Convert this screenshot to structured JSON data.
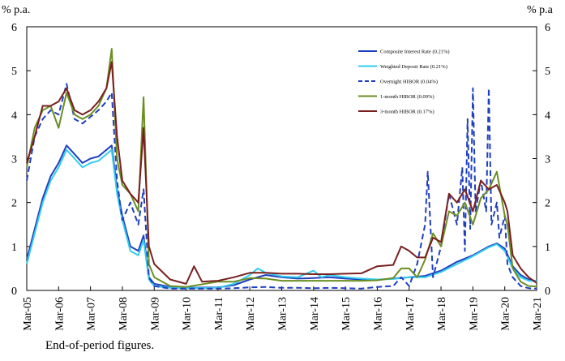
{
  "chart_data": {
    "type": "line",
    "y_unit_left": "% p.a.",
    "y_unit_right": "% p.a",
    "ylim": [
      0,
      6
    ],
    "yticks": [
      0,
      1,
      2,
      3,
      4,
      5,
      6
    ],
    "x_start": "2005-03",
    "x_end": "2021-03",
    "x_tick_labels": [
      "Mar-05",
      "Mar-06",
      "Mar-07",
      "Mar-08",
      "Mar-09",
      "Mar-10",
      "Mar-11",
      "Mar-12",
      "Mar-13",
      "Mar-14",
      "Mar-15",
      "Mar-16",
      "Mar-17",
      "Mar-18",
      "Mar-19",
      "Mar-20",
      "Mar-21"
    ],
    "grid": false,
    "legend_position": "top-right",
    "footnote": "End-of-period figures.",
    "series": [
      {
        "name": "Composite Interest Rate (0.21%)",
        "color": "#1f3fbf",
        "dash": "solid",
        "points": [
          [
            "2005-03",
            0.7
          ],
          [
            "2005-06",
            1.4
          ],
          [
            "2005-09",
            2.1
          ],
          [
            "2005-12",
            2.6
          ],
          [
            "2006-03",
            2.9
          ],
          [
            "2006-06",
            3.3
          ],
          [
            "2006-09",
            3.1
          ],
          [
            "2006-12",
            2.9
          ],
          [
            "2007-03",
            3.0
          ],
          [
            "2007-06",
            3.05
          ],
          [
            "2007-09",
            3.2
          ],
          [
            "2007-11",
            3.3
          ],
          [
            "2008-01",
            2.3
          ],
          [
            "2008-03",
            1.7
          ],
          [
            "2008-06",
            1.0
          ],
          [
            "2008-09",
            0.9
          ],
          [
            "2008-11",
            1.25
          ],
          [
            "2009-01",
            0.3
          ],
          [
            "2009-03",
            0.15
          ],
          [
            "2009-09",
            0.08
          ],
          [
            "2010-03",
            0.06
          ],
          [
            "2011-03",
            0.07
          ],
          [
            "2011-09",
            0.12
          ],
          [
            "2012-03",
            0.25
          ],
          [
            "2012-09",
            0.35
          ],
          [
            "2013-03",
            0.3
          ],
          [
            "2013-09",
            0.27
          ],
          [
            "2014-03",
            0.28
          ],
          [
            "2014-09",
            0.3
          ],
          [
            "2015-03",
            0.27
          ],
          [
            "2015-09",
            0.25
          ],
          [
            "2016-03",
            0.24
          ],
          [
            "2016-09",
            0.27
          ],
          [
            "2017-03",
            0.3
          ],
          [
            "2017-09",
            0.33
          ],
          [
            "2018-03",
            0.45
          ],
          [
            "2018-09",
            0.65
          ],
          [
            "2019-03",
            0.8
          ],
          [
            "2019-09",
            1.0
          ],
          [
            "2019-12",
            1.07
          ],
          [
            "2020-03",
            0.95
          ],
          [
            "2020-06",
            0.55
          ],
          [
            "2020-09",
            0.35
          ],
          [
            "2020-12",
            0.25
          ],
          [
            "2021-03",
            0.21
          ]
        ]
      },
      {
        "name": "Weighted Deposit Rate (0.21%)",
        "color": "#33ccee",
        "dash": "solid",
        "points": [
          [
            "2005-03",
            0.6
          ],
          [
            "2005-06",
            1.3
          ],
          [
            "2005-09",
            2.0
          ],
          [
            "2005-12",
            2.5
          ],
          [
            "2006-03",
            2.8
          ],
          [
            "2006-06",
            3.2
          ],
          [
            "2006-09",
            3.0
          ],
          [
            "2006-12",
            2.8
          ],
          [
            "2007-03",
            2.9
          ],
          [
            "2007-06",
            2.95
          ],
          [
            "2007-09",
            3.1
          ],
          [
            "2007-11",
            3.2
          ],
          [
            "2008-01",
            2.2
          ],
          [
            "2008-03",
            1.6
          ],
          [
            "2008-06",
            0.9
          ],
          [
            "2008-09",
            0.8
          ],
          [
            "2008-11",
            1.15
          ],
          [
            "2009-01",
            0.25
          ],
          [
            "2009-03",
            0.1
          ],
          [
            "2009-09",
            0.06
          ],
          [
            "2010-03",
            0.05
          ],
          [
            "2011-03",
            0.06
          ],
          [
            "2011-09",
            0.15
          ],
          [
            "2012-03",
            0.35
          ],
          [
            "2012-06",
            0.5
          ],
          [
            "2012-09",
            0.4
          ],
          [
            "2013-03",
            0.32
          ],
          [
            "2013-09",
            0.3
          ],
          [
            "2014-03",
            0.45
          ],
          [
            "2014-06",
            0.3
          ],
          [
            "2014-09",
            0.35
          ],
          [
            "2015-03",
            0.3
          ],
          [
            "2015-09",
            0.27
          ],
          [
            "2016-03",
            0.25
          ],
          [
            "2016-09",
            0.26
          ],
          [
            "2017-03",
            0.3
          ],
          [
            "2017-09",
            0.3
          ],
          [
            "2018-03",
            0.42
          ],
          [
            "2018-09",
            0.6
          ],
          [
            "2019-03",
            0.78
          ],
          [
            "2019-09",
            0.98
          ],
          [
            "2019-12",
            1.05
          ],
          [
            "2020-03",
            0.9
          ],
          [
            "2020-06",
            0.5
          ],
          [
            "2020-09",
            0.3
          ],
          [
            "2020-12",
            0.22
          ],
          [
            "2021-03",
            0.21
          ]
        ]
      },
      {
        "name": "Overnight HIBOR (0.04%)",
        "color": "#1f3fbf",
        "dash": "dashed",
        "points": [
          [
            "2005-03",
            2.5
          ],
          [
            "2005-06",
            3.5
          ],
          [
            "2005-09",
            3.9
          ],
          [
            "2005-12",
            4.1
          ],
          [
            "2006-03",
            4.0
          ],
          [
            "2006-06",
            4.7
          ],
          [
            "2006-09",
            3.9
          ],
          [
            "2006-12",
            3.8
          ],
          [
            "2007-03",
            3.95
          ],
          [
            "2007-06",
            4.1
          ],
          [
            "2007-09",
            4.3
          ],
          [
            "2007-11",
            4.5
          ],
          [
            "2008-01",
            2.5
          ],
          [
            "2008-03",
            1.6
          ],
          [
            "2008-06",
            2.0
          ],
          [
            "2008-09",
            1.5
          ],
          [
            "2008-11",
            2.3
          ],
          [
            "2009-01",
            0.3
          ],
          [
            "2009-03",
            0.1
          ],
          [
            "2009-09",
            0.04
          ],
          [
            "2010-03",
            0.04
          ],
          [
            "2011-03",
            0.04
          ],
          [
            "2011-09",
            0.05
          ],
          [
            "2012-03",
            0.07
          ],
          [
            "2012-09",
            0.08
          ],
          [
            "2013-03",
            0.06
          ],
          [
            "2013-09",
            0.06
          ],
          [
            "2014-03",
            0.05
          ],
          [
            "2014-09",
            0.06
          ],
          [
            "2015-03",
            0.05
          ],
          [
            "2015-09",
            0.04
          ],
          [
            "2016-03",
            0.08
          ],
          [
            "2016-09",
            0.1
          ],
          [
            "2016-12",
            0.3
          ],
          [
            "2017-03",
            0.1
          ],
          [
            "2017-06",
            0.6
          ],
          [
            "2017-09",
            1.5
          ],
          [
            "2017-10",
            2.7
          ],
          [
            "2017-12",
            0.3
          ],
          [
            "2018-03",
            1.0
          ],
          [
            "2018-06",
            2.2
          ],
          [
            "2018-09",
            1.5
          ],
          [
            "2018-11",
            2.8
          ],
          [
            "2018-12",
            0.9
          ],
          [
            "2019-01",
            3.9
          ],
          [
            "2019-02",
            1.4
          ],
          [
            "2019-03",
            4.6
          ],
          [
            "2019-04",
            1.8
          ],
          [
            "2019-06",
            2.5
          ],
          [
            "2019-08",
            1.8
          ],
          [
            "2019-09",
            4.6
          ],
          [
            "2019-10",
            1.5
          ],
          [
            "2019-12",
            2.0
          ],
          [
            "2020-01",
            1.2
          ],
          [
            "2020-03",
            1.7
          ],
          [
            "2020-04",
            0.6
          ],
          [
            "2020-06",
            0.3
          ],
          [
            "2020-09",
            0.1
          ],
          [
            "2020-12",
            0.05
          ],
          [
            "2021-03",
            0.04
          ]
        ]
      },
      {
        "name": "1-month HIBOR (0.09%)",
        "color": "#6b8e23",
        "dash": "solid",
        "points": [
          [
            "2005-03",
            2.8
          ],
          [
            "2005-06",
            3.7
          ],
          [
            "2005-09",
            4.1
          ],
          [
            "2005-12",
            4.2
          ],
          [
            "2006-03",
            3.7
          ],
          [
            "2006-06",
            4.5
          ],
          [
            "2006-09",
            4.0
          ],
          [
            "2006-12",
            3.9
          ],
          [
            "2007-03",
            4.0
          ],
          [
            "2007-06",
            4.2
          ],
          [
            "2007-09",
            4.6
          ],
          [
            "2007-11",
            5.5
          ],
          [
            "2008-01",
            3.0
          ],
          [
            "2008-03",
            2.4
          ],
          [
            "2008-06",
            2.2
          ],
          [
            "2008-09",
            1.8
          ],
          [
            "2008-11",
            4.4
          ],
          [
            "2009-01",
            0.6
          ],
          [
            "2009-03",
            0.3
          ],
          [
            "2009-09",
            0.1
          ],
          [
            "2010-03",
            0.08
          ],
          [
            "2011-03",
            0.2
          ],
          [
            "2011-09",
            0.2
          ],
          [
            "2012-03",
            0.28
          ],
          [
            "2012-09",
            0.27
          ],
          [
            "2013-03",
            0.22
          ],
          [
            "2013-09",
            0.22
          ],
          [
            "2014-03",
            0.22
          ],
          [
            "2014-09",
            0.22
          ],
          [
            "2015-03",
            0.22
          ],
          [
            "2015-09",
            0.22
          ],
          [
            "2016-03",
            0.23
          ],
          [
            "2016-09",
            0.28
          ],
          [
            "2016-12",
            0.5
          ],
          [
            "2017-03",
            0.5
          ],
          [
            "2017-06",
            0.3
          ],
          [
            "2017-09",
            0.7
          ],
          [
            "2017-12",
            1.3
          ],
          [
            "2018-03",
            1.0
          ],
          [
            "2018-06",
            1.8
          ],
          [
            "2018-09",
            1.7
          ],
          [
            "2018-12",
            2.0
          ],
          [
            "2019-03",
            1.5
          ],
          [
            "2019-06",
            2.1
          ],
          [
            "2019-09",
            2.3
          ],
          [
            "2019-12",
            2.7
          ],
          [
            "2020-03",
            1.7
          ],
          [
            "2020-04",
            1.5
          ],
          [
            "2020-06",
            0.5
          ],
          [
            "2020-09",
            0.2
          ],
          [
            "2020-12",
            0.1
          ],
          [
            "2021-03",
            0.09
          ]
        ]
      },
      {
        "name": "3-month HIBOR (0.17%)",
        "color": "#7a1f1f",
        "dash": "solid",
        "points": [
          [
            "2005-03",
            2.9
          ],
          [
            "2005-06",
            3.5
          ],
          [
            "2005-09",
            4.2
          ],
          [
            "2005-12",
            4.2
          ],
          [
            "2006-03",
            4.3
          ],
          [
            "2006-06",
            4.6
          ],
          [
            "2006-09",
            4.1
          ],
          [
            "2006-12",
            4.0
          ],
          [
            "2007-03",
            4.1
          ],
          [
            "2007-06",
            4.3
          ],
          [
            "2007-09",
            4.6
          ],
          [
            "2007-11",
            5.2
          ],
          [
            "2008-01",
            3.5
          ],
          [
            "2008-03",
            2.5
          ],
          [
            "2008-06",
            2.2
          ],
          [
            "2008-09",
            2.0
          ],
          [
            "2008-11",
            3.7
          ],
          [
            "2009-01",
            1.0
          ],
          [
            "2009-03",
            0.6
          ],
          [
            "2009-09",
            0.25
          ],
          [
            "2010-03",
            0.15
          ],
          [
            "2010-06",
            0.55
          ],
          [
            "2010-09",
            0.2
          ],
          [
            "2011-03",
            0.22
          ],
          [
            "2011-09",
            0.3
          ],
          [
            "2012-03",
            0.4
          ],
          [
            "2012-09",
            0.4
          ],
          [
            "2013-03",
            0.38
          ],
          [
            "2013-09",
            0.38
          ],
          [
            "2014-03",
            0.37
          ],
          [
            "2014-09",
            0.37
          ],
          [
            "2015-03",
            0.38
          ],
          [
            "2015-09",
            0.39
          ],
          [
            "2016-03",
            0.55
          ],
          [
            "2016-09",
            0.58
          ],
          [
            "2016-12",
            1.0
          ],
          [
            "2017-03",
            0.9
          ],
          [
            "2017-06",
            0.75
          ],
          [
            "2017-09",
            0.75
          ],
          [
            "2017-12",
            1.2
          ],
          [
            "2018-03",
            1.1
          ],
          [
            "2018-06",
            2.2
          ],
          [
            "2018-09",
            2.0
          ],
          [
            "2018-12",
            2.3
          ],
          [
            "2019-03",
            1.8
          ],
          [
            "2019-06",
            2.5
          ],
          [
            "2019-09",
            2.3
          ],
          [
            "2019-12",
            2.4
          ],
          [
            "2020-03",
            2.0
          ],
          [
            "2020-04",
            1.8
          ],
          [
            "2020-06",
            0.8
          ],
          [
            "2020-09",
            0.5
          ],
          [
            "2020-12",
            0.3
          ],
          [
            "2021-03",
            0.17
          ]
        ]
      }
    ]
  }
}
